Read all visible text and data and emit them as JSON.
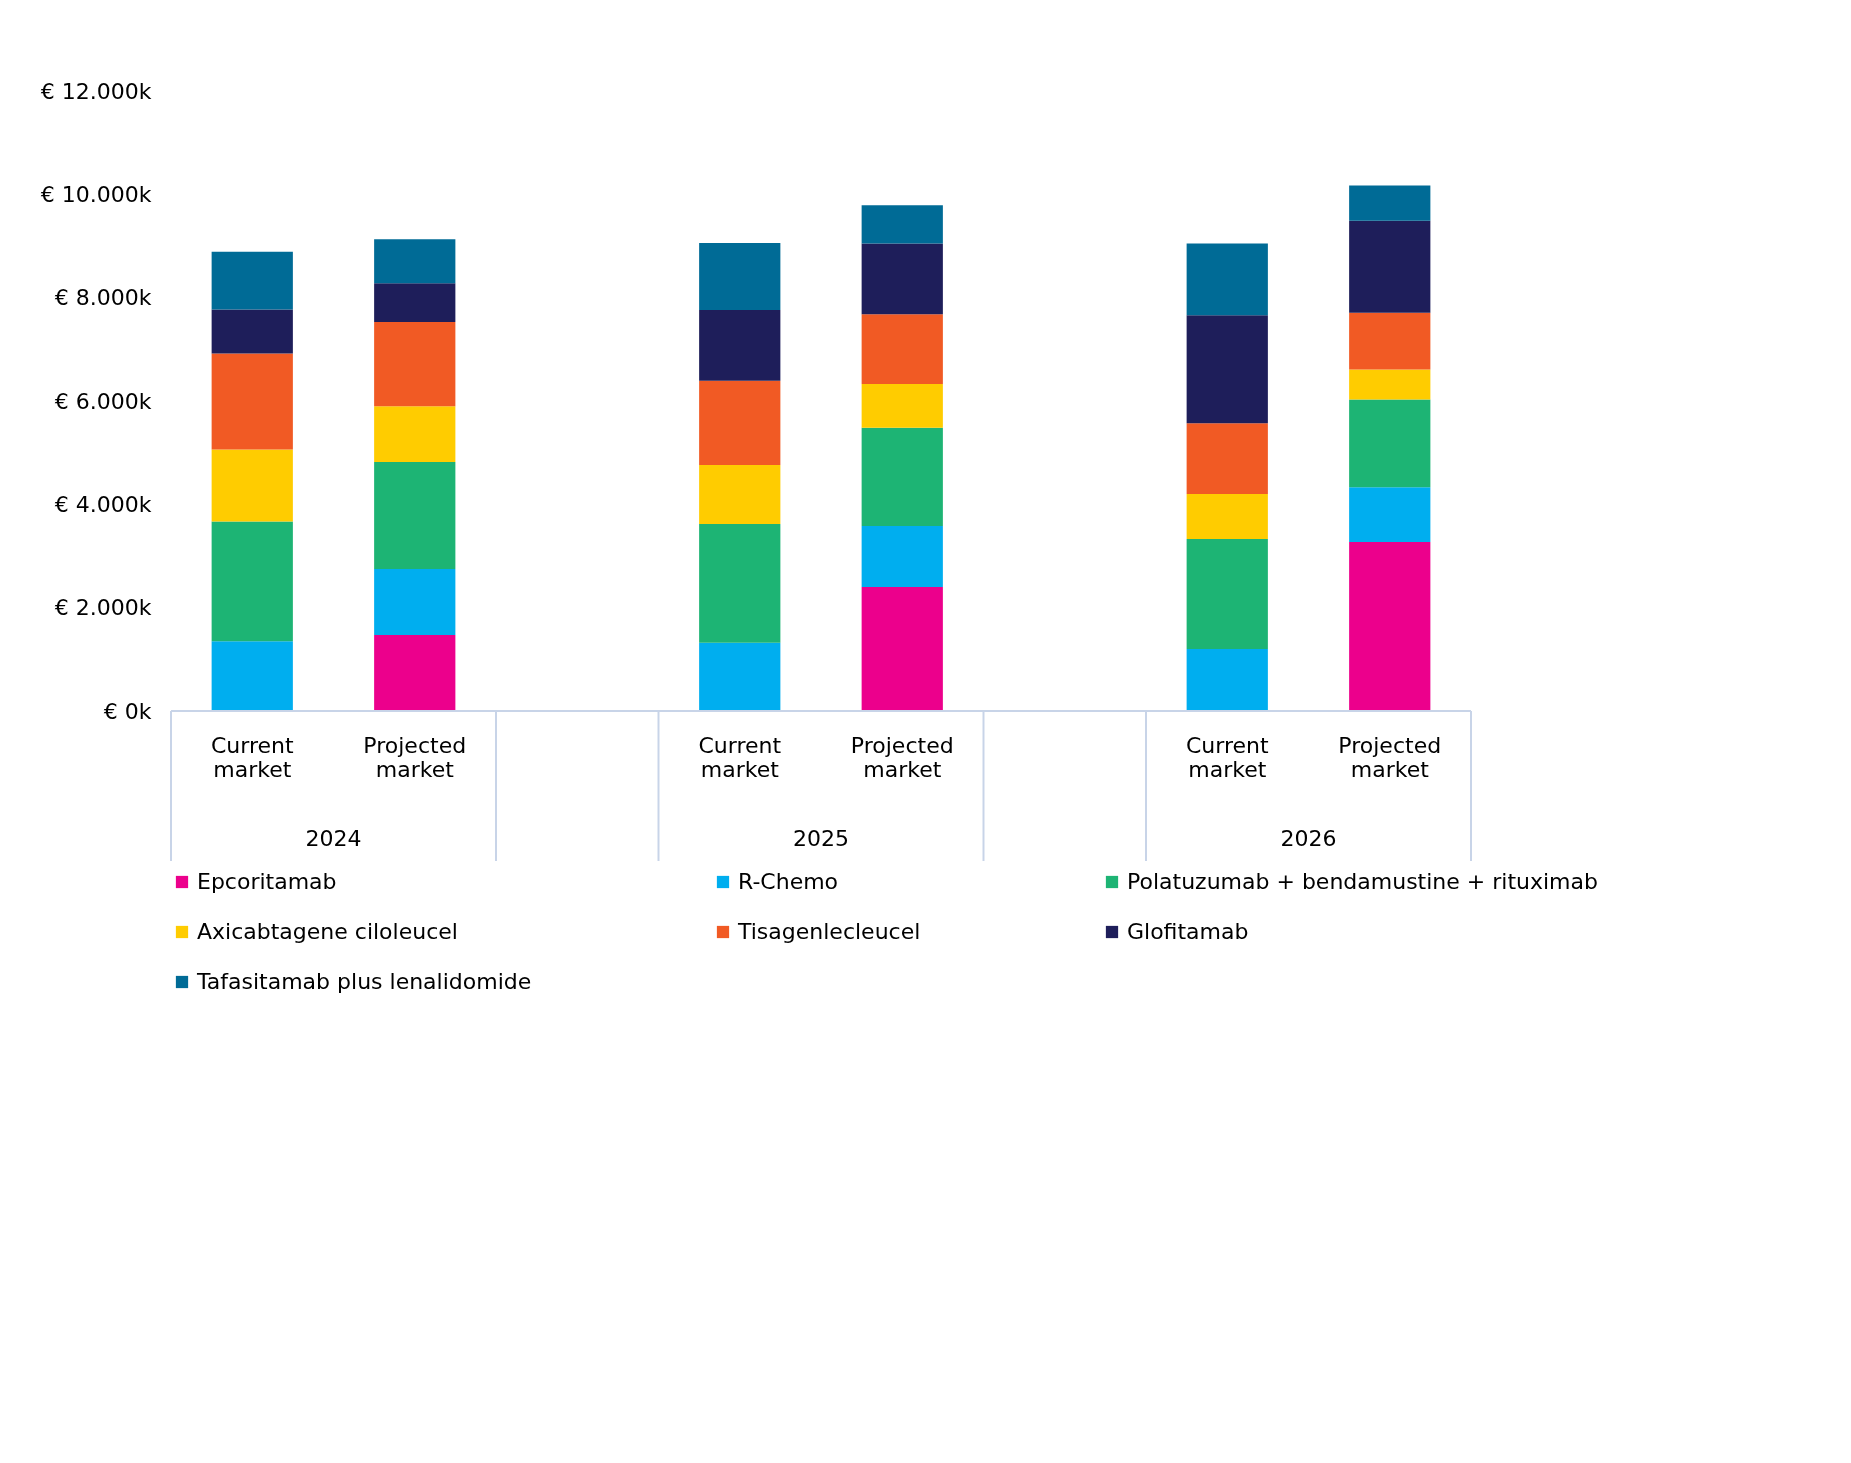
{
  "chart_data": {
    "type": "bar",
    "stacked": true,
    "categories": [
      "Current market",
      "Projected market",
      "Current market",
      "Projected market",
      "Current market",
      "Projected market"
    ],
    "annotations": [
      "2024",
      "2025",
      "2026"
    ],
    "series": [
      {
        "name": "Epcoritamab",
        "color": "#ec008c",
        "values": [
          0,
          1470,
          0,
          2400,
          0,
          3270
        ]
      },
      {
        "name": "R-Chemo",
        "color": "#00aeef",
        "values": [
          1350,
          1280,
          1320,
          1180,
          1200,
          1060
        ]
      },
      {
        "name": "Polatuzumab + bendamustine + rituximab",
        "color": "#1db474",
        "values": [
          2320,
          2070,
          2300,
          1900,
          2130,
          1700
        ]
      },
      {
        "name": "Axicabtagene ciloleucel",
        "color": "#ffcc00",
        "values": [
          1390,
          1080,
          1140,
          850,
          870,
          580
        ]
      },
      {
        "name": "Tisagenlecleucel",
        "color": "#f15a24",
        "values": [
          1860,
          1630,
          1630,
          1350,
          1370,
          1100
        ]
      },
      {
        "name": "Glofitamab",
        "color": "#1e1e5a",
        "values": [
          850,
          750,
          1370,
          1370,
          2090,
          1780
        ]
      },
      {
        "name": "Tafasitamab plus lenalidomide",
        "color": "#006b96",
        "values": [
          1120,
          850,
          1300,
          740,
          1390,
          680
        ]
      }
    ],
    "ylim": [
      0,
      12000
    ],
    "yticks": [
      {
        "value": 0,
        "label": "€ 0k"
      },
      {
        "value": 2000,
        "label": "€ 2.000k"
      },
      {
        "value": 4000,
        "label": "€ 4.000k"
      },
      {
        "value": 6000,
        "label": "€ 6.000k"
      },
      {
        "value": 8000,
        "label": "€ 8.000k"
      },
      {
        "value": 10000,
        "label": "€ 10.000k"
      },
      {
        "value": 12000,
        "label": "€ 12.000k"
      }
    ],
    "grid": false,
    "legend": "bottom"
  }
}
